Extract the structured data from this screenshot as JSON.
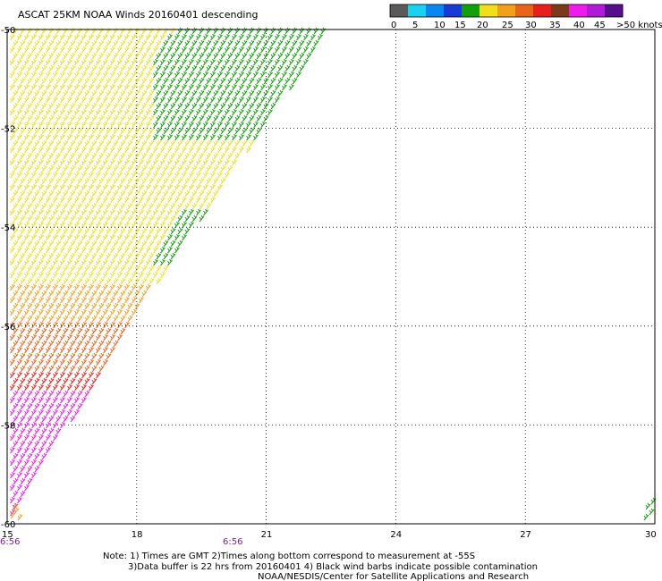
{
  "title": "ASCAT 25KM NOAA Winds 20160401 descending",
  "colorbar": {
    "labels": [
      "0",
      "5",
      "10",
      "15",
      "20",
      "25",
      "30",
      "35",
      "40",
      "45",
      ">50 knots"
    ],
    "colors": [
      "#5a5a5a",
      "#1ad2f0",
      "#0a86f0",
      "#1a3ad8",
      "#12a00a",
      "#f0e01a",
      "#f0a01a",
      "#e8641a",
      "#e81e1e",
      "#7c3a1a",
      "#ee1aee",
      "#b01ad8",
      "#54108c"
    ]
  },
  "lat_labels": [
    "-50",
    "-52",
    "-54",
    "-56",
    "-58",
    "-60"
  ],
  "lon_labels": [
    "15",
    "18",
    "21",
    "24",
    "27",
    "30"
  ],
  "times": [
    "6:56",
    "6:56"
  ],
  "notes": [
    "Note: 1) Times are GMT 2)Times along bottom correspond to measurement at -55S",
    "3)Data buffer is 22 hrs from 20160401 4) Black wind barbs indicate possible contamination",
    "NOAA/NESDIS/Center for Satellite Applications and Research"
  ]
}
